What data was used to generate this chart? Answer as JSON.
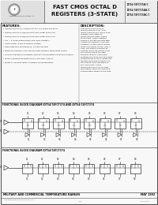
{
  "title_main": "FAST CMOS OCTAL D",
  "title_sub": "REGISTERS (3-STATE)",
  "part_numbers": [
    "IDT54/74FCT374A/C",
    "IDT54/74FCT374AA/C",
    "IDT54/74FCT374AC/C"
  ],
  "features_title": "FEATURES:",
  "features": [
    "IDT54/74FCT374A/C equivalent to FAST speed and drive",
    "IDT54/74FCT374AA/B/C/D up to 30% faster than FAST",
    "IDT54/74FCT374AC/B/C/D up to 60% faster than FAST",
    "Vcc = 5 rated (commercial) and 5Vdc (military)",
    "CMOS power levels in military system",
    "Edge-triggered maintenance, D type flip-flops",
    "Buffered common clock and buffered common three-state control",
    "Product available in Radiation Tolerant and Radiation Enhanced versions",
    "Military product compliant to MIL-STD-883, Class B",
    "Meets or exceeds JEDEC Standard 18 specifications"
  ],
  "desc_title": "DESCRIPTION:",
  "description": "The IDT54/74FCT374A/C, IDT54/74FCT374AA/C, and IDT54-74FCT374/AC are D-type registers built using an advanced dual metal CMOS technology. These registers contain 8 D-type flip-flops with a buffered common clock and buffered 3-state output control. When the output control (OE) is LOW, the outputs function as outputs. When OE equals HIGH, the outputs are in the high impedance state. Input data meeting the set-up and hold-time requirements of the D inputs are transferred to the Q outputs on the LOW-to-HIGH transition of the clock input. Check IDT54/74FCT374AA/C for that information since non-inverting outputs with respect to the data at the D inputs. The IDT54/74FCT374A/AC have inverting outputs.",
  "fbd1_title": "FUNCTIONAL BLOCK DIAGRAM IDT54/74FCT374 AND IDT54/74FCT374",
  "fbd2_title": "FUNCTIONAL BLOCK DIAGRAM IDT54/74FCT374",
  "footer_left": "MILITARY AND COMMERCIAL TEMPERATURE RANGES",
  "footer_right": "MAY 1992",
  "bg_color": "#f5f5f5",
  "text_color": "#111111"
}
